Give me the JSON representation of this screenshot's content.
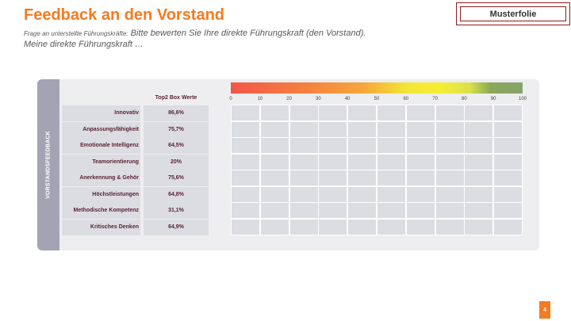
{
  "header": {
    "title": "Feedback an den Vorstand",
    "subtitle_small": "Frage an unterstellte Führungskräfte:",
    "subtitle_main": " Bitte bewerten Sie Ihre direkte Führungskraft (den Vorstand).",
    "subtitle_line2": "Meine direkte Führungskraft …"
  },
  "stamp": {
    "label": "Musterfolie"
  },
  "panel": {
    "side_label": "VORSTANDSFEEDBACK",
    "column_header": "Top2 Box Werte",
    "rows": [
      {
        "label": "Innovativ",
        "value": "86,6%"
      },
      {
        "label": "Anpassungsfähigkeit",
        "value": "75,7%"
      },
      {
        "label": "Emotionale Intelligenz",
        "value": "64,5%"
      },
      {
        "label": "Teamorientierung",
        "value": "20%"
      },
      {
        "label": "Anerkennung & Gehör",
        "value": "75,6%"
      },
      {
        "label": "Höchstleistungen",
        "value": "64,8%"
      },
      {
        "label": "Methodische Kompetenz",
        "value": "31,1%"
      },
      {
        "label": "Kritisches Denken",
        "value": "64,9%"
      }
    ],
    "scale_ticks": [
      "0",
      "10",
      "20",
      "30",
      "40",
      "50",
      "60",
      "70",
      "80",
      "90",
      "100"
    ],
    "scale_colors": [
      "#f4554a",
      "#f5803f",
      "#f6a53c",
      "#f3e536",
      "#8aa85a"
    ]
  },
  "footer": {
    "page_number": "4"
  }
}
